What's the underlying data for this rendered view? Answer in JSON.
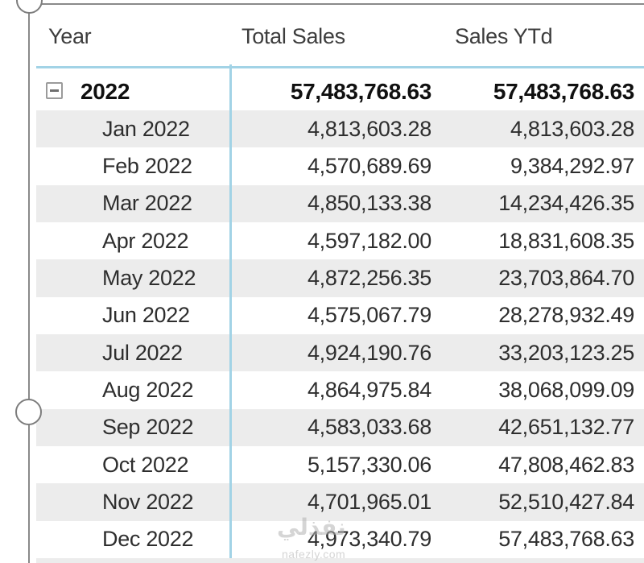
{
  "colors": {
    "accent_line": "#a2d3e6",
    "row_stripe": "#ececec",
    "selection_frame": "#8a8a8a",
    "header_text": "#3d3d3d",
    "body_text": "#2e2e2e",
    "bold_text": "#101010"
  },
  "matrix": {
    "columns": [
      "Year",
      "Total Sales",
      "Sales YTd"
    ],
    "rows": [
      {
        "label": "2022",
        "total_sales": "57,483,768.63",
        "sales_ytd": "57,483,768.63",
        "level": 0,
        "bold": true,
        "collapse_icon": "minus",
        "striped": false
      },
      {
        "label": "Jan 2022",
        "total_sales": "4,813,603.28",
        "sales_ytd": "4,813,603.28",
        "level": 1,
        "bold": false,
        "striped": true
      },
      {
        "label": "Feb 2022",
        "total_sales": "4,570,689.69",
        "sales_ytd": "9,384,292.97",
        "level": 1,
        "bold": false,
        "striped": false
      },
      {
        "label": "Mar 2022",
        "total_sales": "4,850,133.38",
        "sales_ytd": "14,234,426.35",
        "level": 1,
        "bold": false,
        "striped": true
      },
      {
        "label": "Apr 2022",
        "total_sales": "4,597,182.00",
        "sales_ytd": "18,831,608.35",
        "level": 1,
        "bold": false,
        "striped": false
      },
      {
        "label": "May 2022",
        "total_sales": "4,872,256.35",
        "sales_ytd": "23,703,864.70",
        "level": 1,
        "bold": false,
        "striped": true
      },
      {
        "label": "Jun 2022",
        "total_sales": "4,575,067.79",
        "sales_ytd": "28,278,932.49",
        "level": 1,
        "bold": false,
        "striped": false
      },
      {
        "label": "Jul 2022",
        "total_sales": "4,924,190.76",
        "sales_ytd": "33,203,123.25",
        "level": 1,
        "bold": false,
        "striped": true
      },
      {
        "label": "Aug 2022",
        "total_sales": "4,864,975.84",
        "sales_ytd": "38,068,099.09",
        "level": 1,
        "bold": false,
        "striped": false
      },
      {
        "label": "Sep 2022",
        "total_sales": "4,583,033.68",
        "sales_ytd": "42,651,132.77",
        "level": 1,
        "bold": false,
        "striped": true
      },
      {
        "label": "Oct 2022",
        "total_sales": "5,157,330.06",
        "sales_ytd": "47,808,462.83",
        "level": 1,
        "bold": false,
        "striped": false
      },
      {
        "label": "Nov 2022",
        "total_sales": "4,701,965.01",
        "sales_ytd": "52,510,427.84",
        "level": 1,
        "bold": false,
        "striped": true
      },
      {
        "label": "Dec 2022",
        "total_sales": "4,973,340.79",
        "sales_ytd": "57,483,768.63",
        "level": 1,
        "bold": false,
        "striped": false
      }
    ]
  },
  "watermark": {
    "text": "نفذلي",
    "subtext": "nafezly.com"
  }
}
